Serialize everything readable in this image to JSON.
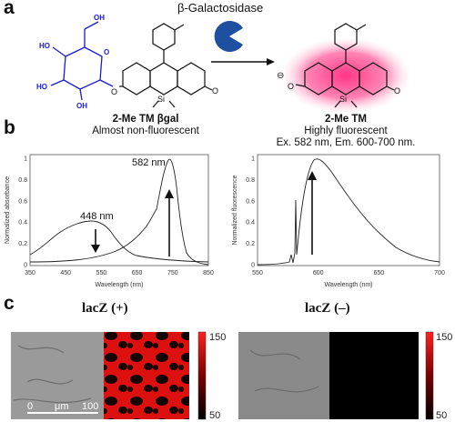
{
  "panel_a": {
    "letter": "a",
    "enzyme_label": "β-Galactosidase",
    "substrate": {
      "name": "2-Me TM βgal",
      "description": "Almost non-fluorescent"
    },
    "product": {
      "name": "2-Me TM",
      "line1": "Highly fluorescent",
      "line2": "Ex. 582 nm, Em. 600-700 nm."
    },
    "atoms": {
      "si": "Si",
      "o": "O",
      "minus": "⊖",
      "oh": "OH",
      "ho": "HO"
    },
    "colors": {
      "sugar": "#1a1adc",
      "glow": "#ff2a7f",
      "pacman": "#1f4fa0"
    }
  },
  "panel_b": {
    "letter": "b",
    "absorbance": {
      "ylabel": "Normalized absorbance",
      "xlabel": "Wavelength (nm)",
      "xticks": [
        "350",
        "450",
        "550",
        "650",
        "750",
        "850"
      ],
      "yticks": [
        "0",
        "0.2",
        "0.4",
        "0.6",
        "0.8",
        "1"
      ],
      "annot_448": "448 nm",
      "annot_582": "582 nm"
    },
    "fluorescence": {
      "ylabel": "Normalized fluorescence",
      "xlabel": "Wavelength (nm)",
      "xticks": [
        "550",
        "600",
        "650",
        "700"
      ],
      "yticks": [
        "0",
        "0.2",
        "0.4",
        "0.6",
        "0.8",
        "1"
      ]
    }
  },
  "panel_c": {
    "letter": "c",
    "left_title": "lacZ (+)",
    "right_title": "lacZ (–)",
    "scalebar_zero": "0",
    "scalebar_unit": "μm",
    "scalebar_end": "100",
    "colorbar_max": "150",
    "colorbar_min": "50"
  }
}
